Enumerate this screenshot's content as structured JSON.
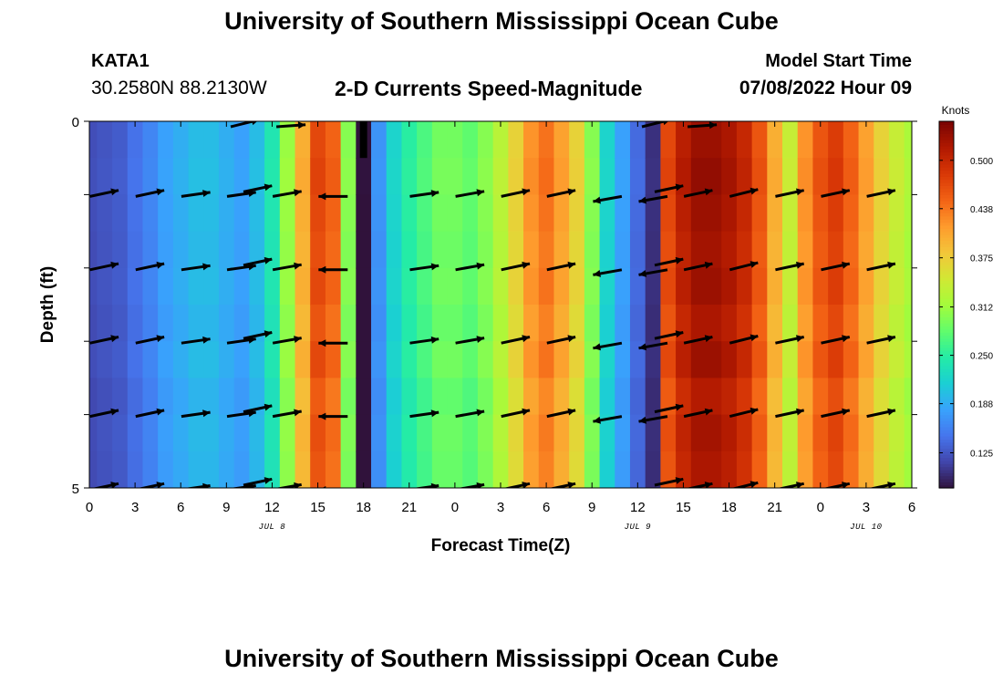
{
  "header": {
    "title": "University of Southern Mississippi Ocean Cube",
    "station": "KATA1",
    "coords": "30.2580N  88.2130W",
    "subtitle": "2-D Currents Speed-Magnitude",
    "model_start_label": "Model Start Time",
    "model_start_value": "07/08/2022 Hour 09"
  },
  "footer": {
    "title": "University of Southern Mississippi Ocean Cube"
  },
  "colorbar": {
    "title": "Knots",
    "ticks": [
      "0.125",
      "0.188",
      "0.250",
      "0.312",
      "0.375",
      "0.438",
      "0.500"
    ],
    "tick_values": [
      0.125,
      0.188,
      0.25,
      0.312,
      0.375,
      0.438,
      0.5
    ],
    "range": [
      0.08,
      0.55
    ],
    "colors": [
      "#30123b",
      "#4145ab",
      "#4675ed",
      "#39a2fc",
      "#1bcfd4",
      "#24eca6",
      "#61fc6c",
      "#a4fc3b",
      "#d1e834",
      "#f3c63a",
      "#fe9b2d",
      "#f36315",
      "#d93806",
      "#b11901",
      "#7a0402"
    ]
  },
  "chart_data": {
    "type": "heatmap",
    "title": "2-D Currents Speed-Magnitude",
    "xlabel": "Forecast Time(Z)",
    "ylabel": "Depth (ft)",
    "unit": "Knots",
    "x_tick_labels": [
      "0",
      "3",
      "6",
      "9",
      "12",
      "15",
      "18",
      "21",
      "0",
      "3",
      "6",
      "9",
      "12",
      "15",
      "18",
      "21",
      "0",
      "3",
      "6"
    ],
    "date_labels": [
      {
        "label": "JUL 8",
        "at_tick": 4
      },
      {
        "label": "JUL 9",
        "at_tick": 12
      },
      {
        "label": "JUL 10",
        "at_tick": 17
      }
    ],
    "y_tick_labels": [
      "0",
      "5"
    ],
    "ylim": [
      0,
      5
    ],
    "x_hours": [
      0,
      1,
      2,
      3,
      4,
      5,
      6,
      7,
      8,
      9,
      10,
      11,
      12,
      13,
      14,
      15,
      16,
      17,
      18,
      19,
      20,
      21,
      22,
      23,
      24,
      25,
      26,
      27,
      28,
      29,
      30,
      31,
      32,
      33,
      34,
      35,
      36,
      37,
      38,
      39,
      40,
      41,
      42,
      43,
      44,
      45,
      46,
      47,
      48,
      49,
      50,
      51,
      52,
      53,
      54
    ],
    "speed_by_hour": [
      0.12,
      0.125,
      0.13,
      0.145,
      0.16,
      0.18,
      0.19,
      0.2,
      0.2,
      0.19,
      0.18,
      0.2,
      0.24,
      0.31,
      0.4,
      0.47,
      0.45,
      0.3,
      0.08,
      0.17,
      0.22,
      0.25,
      0.27,
      0.29,
      0.29,
      0.28,
      0.3,
      0.33,
      0.37,
      0.42,
      0.44,
      0.41,
      0.37,
      0.3,
      0.22,
      0.18,
      0.14,
      0.1,
      0.47,
      0.51,
      0.53,
      0.53,
      0.52,
      0.5,
      0.46,
      0.4,
      0.34,
      0.42,
      0.46,
      0.48,
      0.45,
      0.41,
      0.37,
      0.34,
      0.32
    ],
    "depth_modifiers": [
      1.0,
      1.01,
      1.0,
      0.99,
      1.0,
      0.98,
      1.0,
      0.97,
      0.99,
      0.98
    ],
    "missing_cell": {
      "hour": 18,
      "depth_from": 0,
      "depth_to": 0.5
    },
    "vector_hours": [
      1,
      4,
      7,
      10,
      13,
      16,
      22,
      25,
      28,
      31,
      34,
      37,
      40,
      43,
      46,
      49,
      52
    ],
    "vector_depths": [
      0,
      1,
      2,
      3,
      4,
      5
    ],
    "vector_angles_deg": [
      -12,
      -12,
      -8,
      -8,
      -10,
      0,
      -8,
      -10,
      -12,
      -12,
      -10,
      -10,
      -12,
      -14,
      -12,
      -12,
      -12
    ],
    "vector_direction": [
      "east",
      "east",
      "east",
      "east",
      "east",
      "west",
      "east",
      "east",
      "east",
      "east",
      "west",
      "west",
      "east",
      "east",
      "east",
      "east",
      "east"
    ],
    "vector_double_at": [
      10,
      37
    ],
    "top_row_vectors": [
      {
        "hour": 10,
        "dir": "east-north"
      },
      {
        "hour": 13,
        "dir": "east"
      },
      {
        "hour": 37,
        "dir": "east-north"
      },
      {
        "hour": 40,
        "dir": "east"
      }
    ]
  }
}
